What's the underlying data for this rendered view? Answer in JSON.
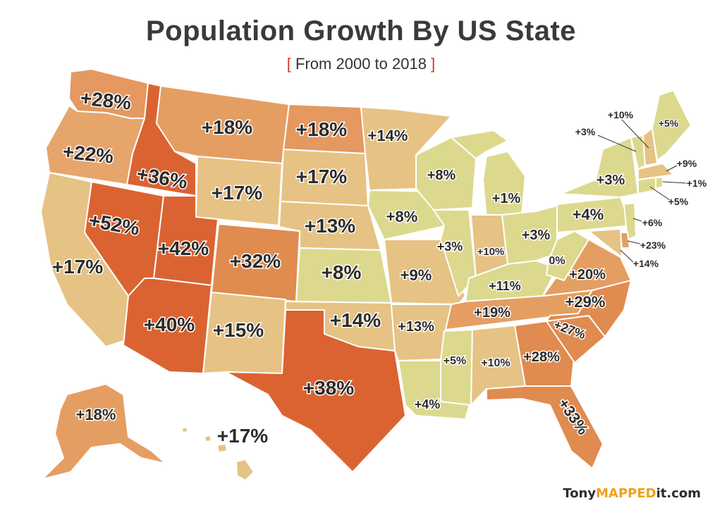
{
  "title": "Population Growth By US State",
  "subtitle": {
    "open": "[",
    "text": "From 2000 to 2018",
    "close": "]"
  },
  "brand": {
    "pre": "Tony",
    "mid": "MAPPED",
    "post": "it.com"
  },
  "legend_colors": {
    "high": "#db6332",
    "mid": "#e59860",
    "low_mid": "#e6c284",
    "low": "#dcd98e"
  },
  "states": {
    "WA": "+28%",
    "OR": "+22%",
    "CA": "+17%",
    "ID": "+36%",
    "NV": "+52%",
    "UT": "+42%",
    "AZ": "+40%",
    "MT": "+18%",
    "WY": "+17%",
    "CO": "+32%",
    "NM": "+15%",
    "ND": "+18%",
    "SD": "+17%",
    "NE": "+13%",
    "KS": "+8%",
    "OK": "+14%",
    "TX": "+38%",
    "MN": "+14%",
    "IA": "+8%",
    "MO": "+9%",
    "AR": "+13%",
    "LA": "+4%",
    "WI": "+8%",
    "IL": "+3%",
    "MS": "+5%",
    "MI": "+1%",
    "IN": "+10%",
    "KY": "+11%",
    "TN": "+19%",
    "AL": "+10%",
    "OH": "+3%",
    "WV": "0%",
    "VA": "+20%",
    "NC": "+29%",
    "SC": "+27%",
    "GA": "+28%",
    "FL": "+33%",
    "PA": "+4%",
    "NY": "+3%",
    "VT": "+3%",
    "NH": "+10%",
    "ME": "+5%",
    "MA": "+9%",
    "RI": "+1%",
    "CT": "+5%",
    "NJ": "+6%",
    "DE": "+23%",
    "MD": "+14%",
    "AK": "+18%",
    "HI": "+17%"
  }
}
